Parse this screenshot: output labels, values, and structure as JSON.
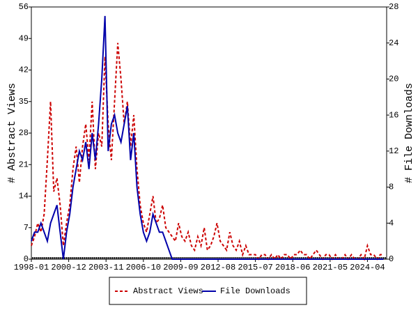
{
  "chart_data": {
    "type": "line",
    "y_label": "# Abstract Views",
    "y2_label": "# File Downloads",
    "x": [
      "1998-01",
      "1998-04",
      "1998-07",
      "1998-10",
      "1999-01",
      "1999-04",
      "1999-07",
      "1999-10",
      "2000-01",
      "2000-04",
      "2000-07",
      "2000-10",
      "2001-01",
      "2001-04",
      "2001-07",
      "2001-10",
      "2002-01",
      "2002-04",
      "2002-07",
      "2002-10",
      "2003-01",
      "2003-04",
      "2003-07",
      "2003-10",
      "2004-01",
      "2004-04",
      "2004-07",
      "2004-10",
      "2005-01",
      "2005-04",
      "2005-07",
      "2005-10",
      "2006-01",
      "2006-04",
      "2006-07",
      "2006-10",
      "2007-01",
      "2007-04",
      "2007-07",
      "2007-10",
      "2008-01",
      "2008-04",
      "2008-07",
      "2008-10",
      "2009-01",
      "2009-04",
      "2009-07",
      "2009-10",
      "2010-01",
      "2010-04",
      "2010-07",
      "2010-10",
      "2011-01",
      "2011-04",
      "2011-07",
      "2011-10",
      "2012-01",
      "2012-04",
      "2012-07",
      "2012-10",
      "2013-01",
      "2013-04",
      "2013-07",
      "2013-10",
      "2014-01",
      "2014-04",
      "2014-07",
      "2014-10",
      "2015-01",
      "2015-04",
      "2015-07",
      "2015-10",
      "2016-01",
      "2016-04",
      "2016-07",
      "2016-10",
      "2017-01",
      "2017-04",
      "2017-07",
      "2017-10",
      "2018-01",
      "2018-04",
      "2018-07",
      "2018-10",
      "2019-01",
      "2019-04",
      "2019-07",
      "2019-10",
      "2020-01",
      "2020-04",
      "2020-07",
      "2020-10",
      "2021-01",
      "2021-04",
      "2021-07",
      "2021-10",
      "2022-01",
      "2022-04",
      "2022-07",
      "2022-10",
      "2023-01",
      "2023-04",
      "2023-07",
      "2023-10",
      "2024-01",
      "2024-04",
      "2024-07",
      "2024-10",
      "2025-01",
      "2025-04",
      "2025-07"
    ],
    "xlim": [
      "1998-01",
      "2025-10"
    ],
    "xticks": [
      "1998-01",
      "2000-12",
      "2003-11",
      "2006-10",
      "2009-09",
      "2012-08",
      "2015-07",
      "2018-06",
      "2021-05",
      "2024-04"
    ],
    "ylim": [
      0,
      56
    ],
    "yticks": [
      0,
      7,
      14,
      21,
      28,
      35,
      42,
      49,
      56
    ],
    "y2lim": [
      0,
      28
    ],
    "y2ticks": [
      0,
      4,
      8,
      12,
      16,
      20,
      24,
      28
    ],
    "series": [
      {
        "name": "Abstract Views",
        "color": "#cc0000",
        "dash": true,
        "values": [
          3,
          5,
          8,
          6,
          10,
          22,
          35,
          15,
          18,
          12,
          3,
          8,
          12,
          20,
          25,
          17,
          25,
          30,
          22,
          35,
          20,
          28,
          25,
          45,
          30,
          22,
          35,
          48,
          40,
          30,
          35,
          25,
          32,
          20,
          12,
          8,
          6,
          10,
          14,
          8,
          9,
          12,
          7,
          6,
          5,
          4,
          8,
          5,
          4,
          6,
          3,
          2,
          5,
          3,
          7,
          2,
          3,
          5,
          8,
          4,
          3,
          2,
          6,
          3,
          2,
          4,
          1,
          3,
          1,
          1,
          1,
          0,
          1,
          1,
          0,
          1,
          0,
          1,
          0,
          1,
          1,
          0,
          1,
          1,
          2,
          1,
          1,
          0,
          1,
          2,
          1,
          0,
          1,
          1,
          0,
          1,
          0,
          0,
          1,
          0,
          1,
          0,
          0,
          1,
          0,
          3,
          1,
          1,
          0,
          1,
          1
        ]
      },
      {
        "name": "File Downloads",
        "color": "#0000aa",
        "axis": "y2",
        "dash": false,
        "values": [
          2,
          3,
          3,
          4,
          3,
          2,
          4,
          5,
          6,
          3,
          0,
          3,
          5,
          8,
          10,
          12,
          11,
          13,
          10,
          14,
          11,
          15,
          20,
          27,
          12,
          15,
          16,
          14,
          13,
          15,
          17,
          11,
          14,
          8,
          5,
          3,
          2,
          3,
          5,
          4,
          3,
          3,
          2,
          1,
          0,
          0,
          0,
          0,
          0,
          0,
          0,
          0,
          0,
          0,
          0,
          0,
          0,
          0,
          0,
          0,
          0,
          0,
          0,
          0,
          0,
          0,
          0,
          0,
          0,
          0,
          0,
          0,
          0,
          0,
          0,
          0,
          0,
          0,
          0,
          0,
          0,
          0,
          0,
          0,
          0,
          0,
          0,
          0,
          0,
          0,
          0,
          0,
          0,
          0,
          0,
          0,
          0,
          0,
          0,
          0,
          0,
          0,
          0,
          0,
          0,
          0,
          0,
          0,
          0,
          0,
          0
        ]
      }
    ]
  }
}
